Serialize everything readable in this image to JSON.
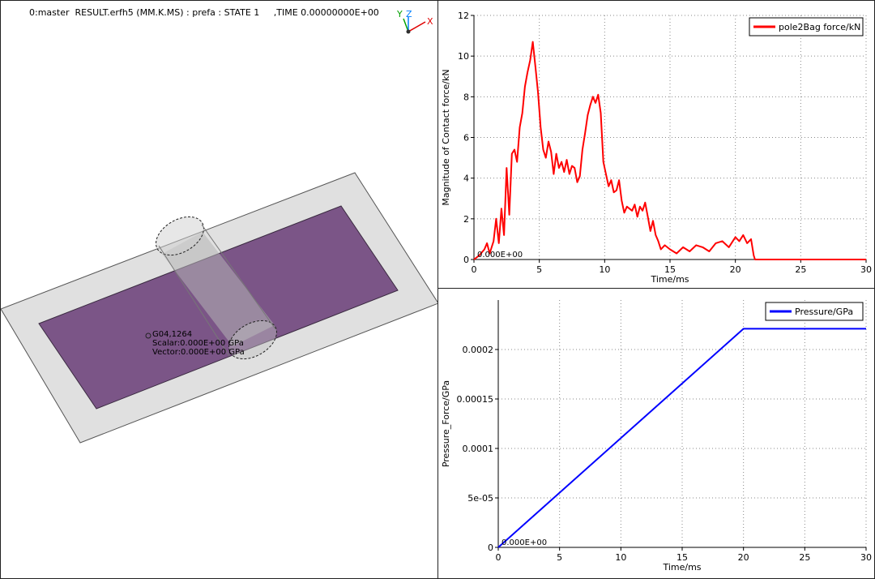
{
  "viewport": {
    "header": {
      "model": "0:master",
      "file": "RESULT.erfh5 (MM.K.MS)",
      "prefix": ": prefa",
      "state": ": STATE 1",
      "time": ",TIME 0.00000000E+00"
    },
    "triad": {
      "y": "Y",
      "z": "Z",
      "x": "X"
    },
    "annotation": {
      "node": "G04,1264",
      "scalar": "Scalar:0.000E+00 GPa",
      "vector": "Vector:0.000E+00 GPa"
    },
    "colors": {
      "plate": "#7b5587",
      "border": "#e0e0e0",
      "cylinder": "#b8b8b8"
    }
  },
  "plots": [
    {
      "legend": "pole2Bag force/kN",
      "origin_label": "0.000E+00",
      "xlabel": "Time/ms",
      "ylabel": "Magnitude of Contact force/kN",
      "color": "#ff0000",
      "chart_data": {
        "type": "line",
        "xlim": [
          0,
          30
        ],
        "ylim": [
          0,
          12
        ],
        "x_ticks": [
          "0",
          "5",
          "10",
          "15",
          "20",
          "25",
          "30"
        ],
        "y_ticks": [
          "0",
          "2",
          "4",
          "6",
          "8",
          "10",
          "12"
        ],
        "grid": true,
        "legend_position": "top-right",
        "series": [
          {
            "name": "pole2Bag force/kN",
            "x": [
              0,
              0.4,
              0.8,
              1.0,
              1.2,
              1.5,
              1.7,
              1.9,
              2.1,
              2.3,
              2.5,
              2.7,
              2.9,
              3.1,
              3.3,
              3.5,
              3.7,
              3.9,
              4.1,
              4.3,
              4.5,
              4.7,
              4.9,
              5.1,
              5.3,
              5.5,
              5.7,
              5.9,
              6.1,
              6.3,
              6.5,
              6.7,
              6.9,
              7.1,
              7.3,
              7.5,
              7.7,
              7.9,
              8.1,
              8.3,
              8.5,
              8.7,
              8.9,
              9.1,
              9.3,
              9.5,
              9.7,
              9.9,
              10.1,
              10.3,
              10.5,
              10.7,
              10.9,
              11.1,
              11.3,
              11.5,
              11.7,
              11.9,
              12.1,
              12.3,
              12.5,
              12.7,
              12.9,
              13.1,
              13.3,
              13.5,
              13.7,
              13.9,
              14.1,
              14.3,
              14.6,
              15.0,
              15.5,
              16.0,
              16.5,
              17.0,
              17.5,
              18.0,
              18.5,
              19.0,
              19.5,
              20.0,
              20.3,
              20.6,
              20.9,
              21.2,
              21.4,
              21.5,
              22,
              25,
              30
            ],
            "y": [
              0,
              0.2,
              0.5,
              0.8,
              0.3,
              0.9,
              2.0,
              0.8,
              2.5,
              1.2,
              4.5,
              2.2,
              5.2,
              5.4,
              4.8,
              6.5,
              7.2,
              8.5,
              9.2,
              9.8,
              10.7,
              9.5,
              8.2,
              6.5,
              5.4,
              5.0,
              5.8,
              5.3,
              4.2,
              5.2,
              4.5,
              4.8,
              4.3,
              4.9,
              4.2,
              4.6,
              4.5,
              3.8,
              4.1,
              5.4,
              6.2,
              7.1,
              7.6,
              8.0,
              7.7,
              8.1,
              7.2,
              4.8,
              4.2,
              3.6,
              3.9,
              3.3,
              3.4,
              3.9,
              2.9,
              2.3,
              2.6,
              2.5,
              2.4,
              2.7,
              2.1,
              2.6,
              2.4,
              2.8,
              2.1,
              1.4,
              1.9,
              1.2,
              0.9,
              0.5,
              0.7,
              0.5,
              0.3,
              0.6,
              0.4,
              0.7,
              0.6,
              0.4,
              0.8,
              0.9,
              0.6,
              1.1,
              0.9,
              1.2,
              0.8,
              1.0,
              0.2,
              0,
              0,
              0,
              0
            ]
          }
        ]
      }
    },
    {
      "legend": "Pressure/GPa",
      "origin_label": "0.000E+00",
      "xlabel": "Time/ms",
      "ylabel": "Pressure_Force/GPa",
      "color": "#0000ff",
      "chart_data": {
        "type": "line",
        "xlim": [
          0,
          30
        ],
        "ylim": [
          0,
          0.00025
        ],
        "x_ticks": [
          "0",
          "5",
          "10",
          "15",
          "20",
          "25",
          "30"
        ],
        "y_ticks": [
          "0",
          "5e-05",
          "0.0001",
          "0.00015",
          "0.0002"
        ],
        "y_tick_values": [
          0,
          5e-05,
          0.0001,
          0.00015,
          0.0002
        ],
        "grid": true,
        "legend_position": "top-right",
        "series": [
          {
            "name": "Pressure/GPa",
            "x": [
              0,
              20,
              30
            ],
            "y": [
              0,
              0.000221,
              0.000221
            ]
          }
        ]
      }
    }
  ]
}
